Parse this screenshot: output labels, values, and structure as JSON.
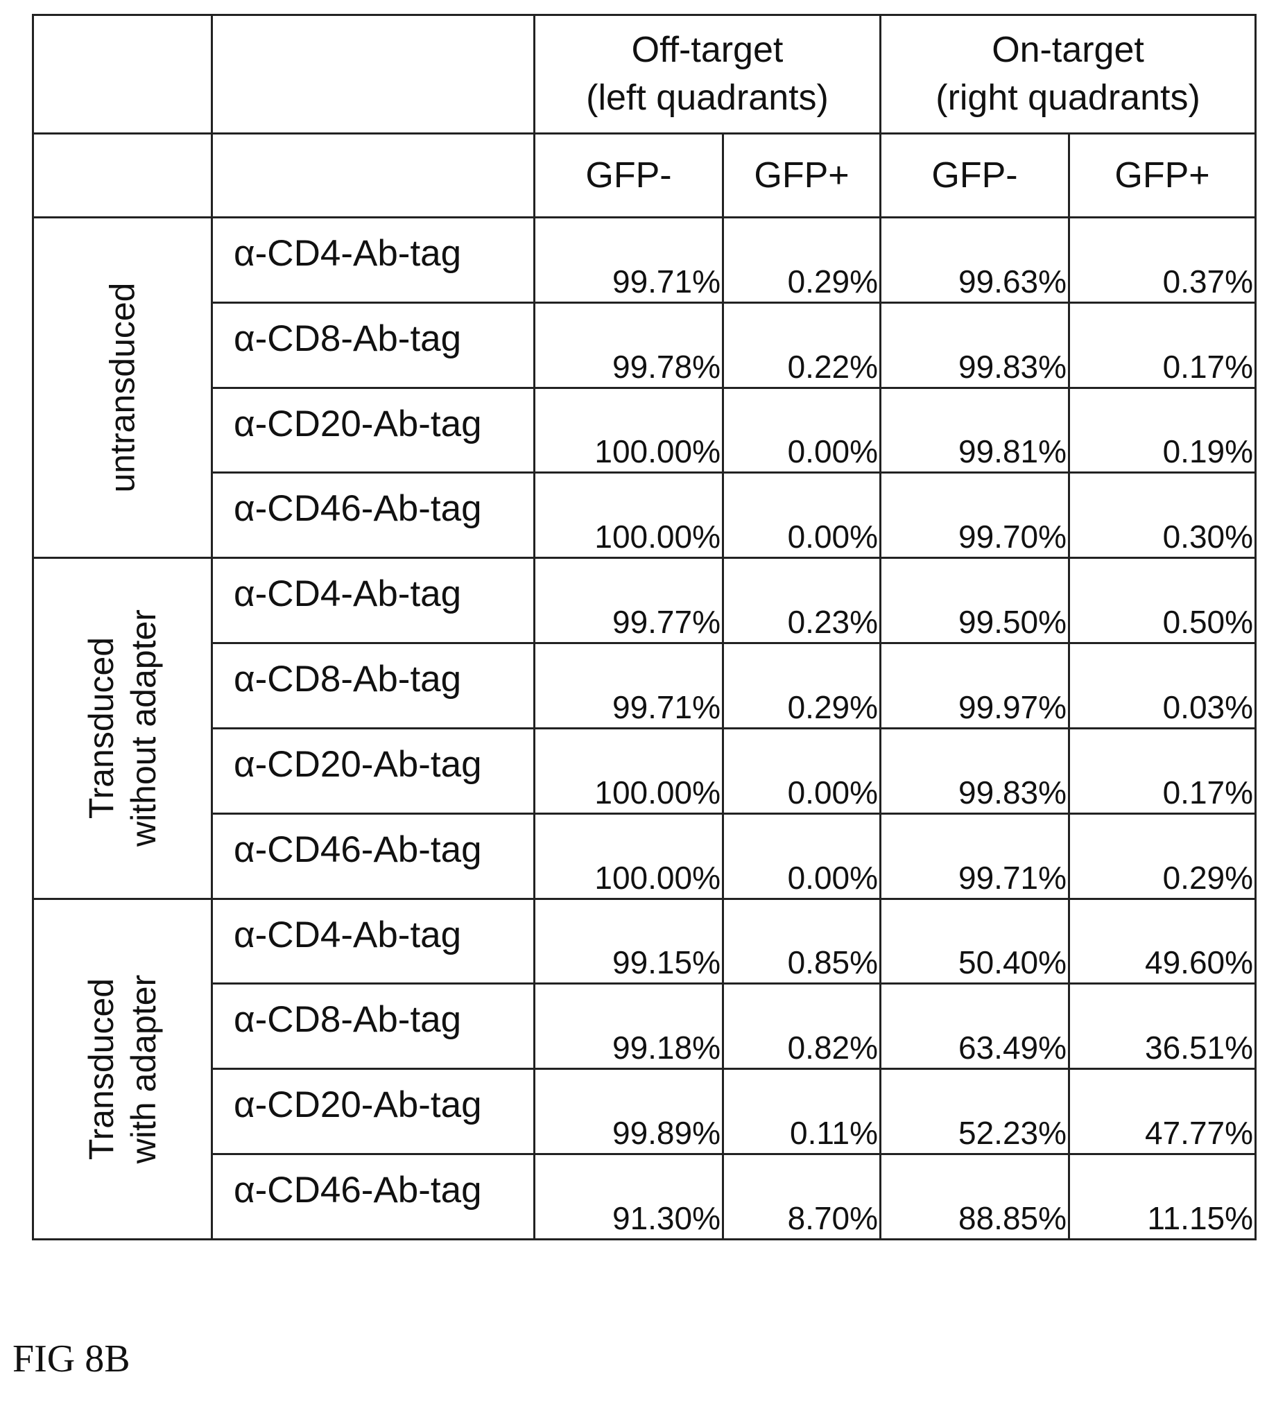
{
  "table": {
    "off_target": {
      "line1": "Off-target",
      "line2": "(left quadrants)"
    },
    "on_target": {
      "line1": "On-target",
      "line2": "(right quadrants)"
    },
    "subheaders": [
      "GFP-",
      "GFP+",
      "GFP-",
      "GFP+"
    ],
    "groups": [
      {
        "label_lines": [
          "untransduced"
        ],
        "rows": [
          {
            "antibody": "α-CD4-Ab-tag",
            "values": [
              "99.71%",
              "0.29%",
              "99.63%",
              "0.37%"
            ]
          },
          {
            "antibody": "α-CD8-Ab-tag",
            "values": [
              "99.78%",
              "0.22%",
              "99.83%",
              "0.17%"
            ]
          },
          {
            "antibody": "α-CD20-Ab-tag",
            "values": [
              "100.00%",
              "0.00%",
              "99.81%",
              "0.19%"
            ]
          },
          {
            "antibody": "α-CD46-Ab-tag",
            "values": [
              "100.00%",
              "0.00%",
              "99.70%",
              "0.30%"
            ]
          }
        ]
      },
      {
        "label_lines": [
          "Transduced",
          "without adapter"
        ],
        "rows": [
          {
            "antibody": "α-CD4-Ab-tag",
            "values": [
              "99.77%",
              "0.23%",
              "99.50%",
              "0.50%"
            ]
          },
          {
            "antibody": "α-CD8-Ab-tag",
            "values": [
              "99.71%",
              "0.29%",
              "99.97%",
              "0.03%"
            ]
          },
          {
            "antibody": "α-CD20-Ab-tag",
            "values": [
              "100.00%",
              "0.00%",
              "99.83%",
              "0.17%"
            ]
          },
          {
            "antibody": "α-CD46-Ab-tag",
            "values": [
              "100.00%",
              "0.00%",
              "99.71%",
              "0.29%"
            ]
          }
        ]
      },
      {
        "label_lines": [
          "Transduced",
          "with adapter"
        ],
        "rows": [
          {
            "antibody": "α-CD4-Ab-tag",
            "values": [
              "99.15%",
              "0.85%",
              "50.40%",
              "49.60%"
            ]
          },
          {
            "antibody": "α-CD8-Ab-tag",
            "values": [
              "99.18%",
              "0.82%",
              "63.49%",
              "36.51%"
            ]
          },
          {
            "antibody": "α-CD20-Ab-tag",
            "values": [
              "99.89%",
              "0.11%",
              "52.23%",
              "47.77%"
            ]
          },
          {
            "antibody": "α-CD46-Ab-tag",
            "values": [
              "91.30%",
              "8.70%",
              "88.85%",
              "11.15%"
            ]
          }
        ]
      }
    ]
  },
  "caption": "FIG 8B"
}
